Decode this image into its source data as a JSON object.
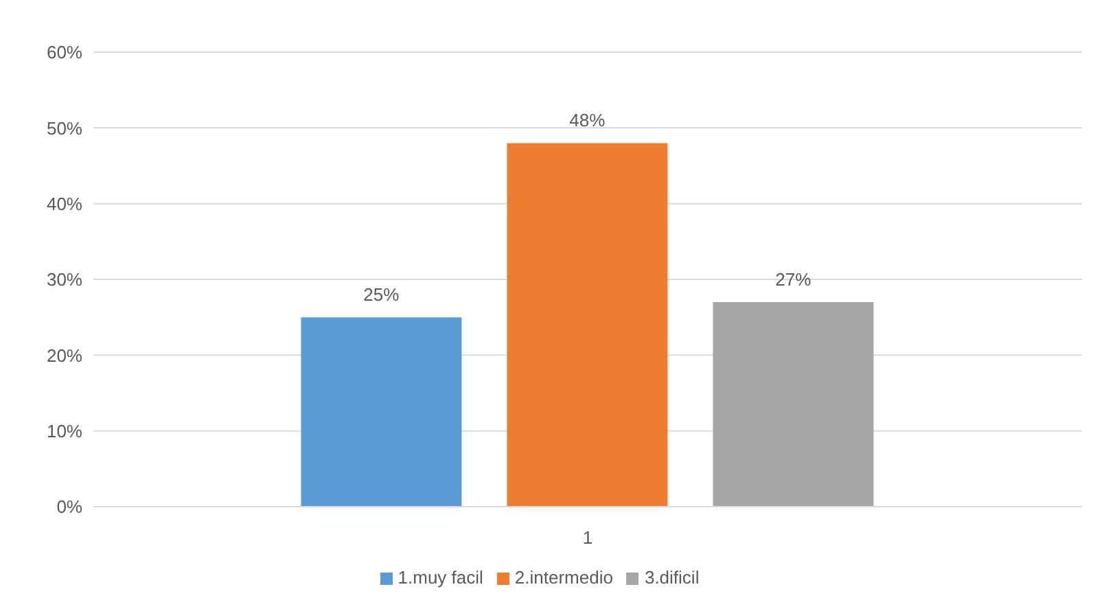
{
  "chart_data": {
    "type": "bar",
    "categories": [
      "1"
    ],
    "series": [
      {
        "name": "1.muy facil",
        "color": "#5b9bd5",
        "values": [
          25
        ],
        "value_labels": [
          "25%"
        ]
      },
      {
        "name": "2.intermedio",
        "color": "#ed7d31",
        "values": [
          48
        ],
        "value_labels": [
          "48%"
        ]
      },
      {
        "name": "3.dificil",
        "color": "#a5a5a5",
        "values": [
          27
        ],
        "value_labels": [
          "27%"
        ]
      }
    ],
    "ylim": [
      0,
      60
    ],
    "yticks": [
      {
        "value": 0,
        "label": "0%"
      },
      {
        "value": 10,
        "label": "10%"
      },
      {
        "value": 20,
        "label": "20%"
      },
      {
        "value": 30,
        "label": "30%"
      },
      {
        "value": 40,
        "label": "40%"
      },
      {
        "value": 50,
        "label": "50%"
      },
      {
        "value": 60,
        "label": "60%"
      }
    ],
    "grid": "y",
    "legend": "bottom"
  }
}
